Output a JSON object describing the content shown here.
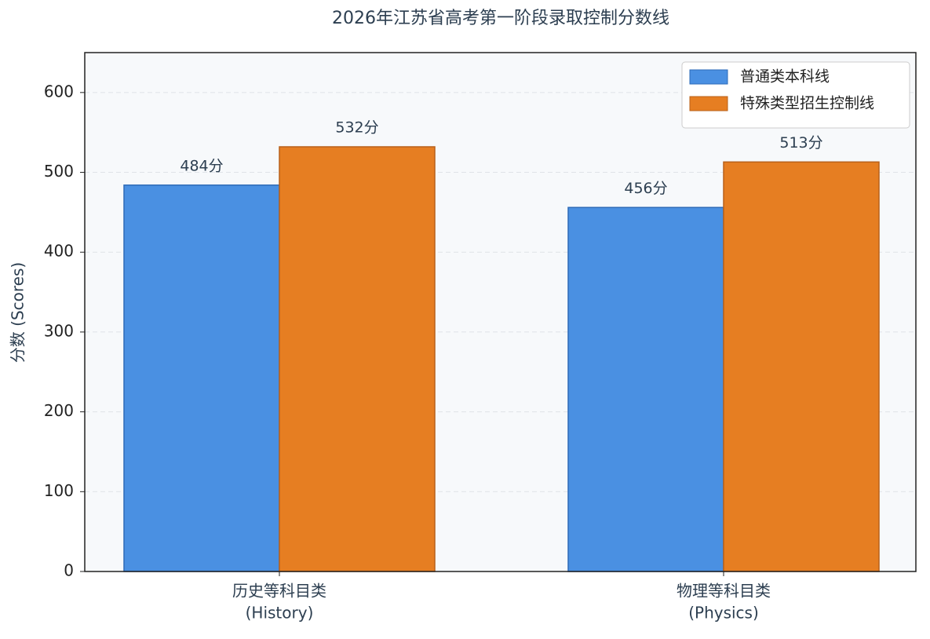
{
  "chart_data": {
    "type": "bar",
    "title": "2026年江苏省高考第一阶段录取控制分数线",
    "y_label": "分数 (Scores)",
    "categories": [
      [
        "历史等科目类",
        "(History)"
      ],
      [
        "物理等科目类",
        "(Physics)"
      ]
    ],
    "series": [
      {
        "name": "普通类本科线",
        "color": "#4a90e2",
        "edge": "#2e6bb8",
        "values": [
          484,
          456
        ],
        "value_labels": [
          "484分",
          "456分"
        ]
      },
      {
        "name": "特殊类型招生控制线",
        "color": "#e67e22",
        "edge": "#b8601a",
        "values": [
          532,
          513
        ],
        "value_labels": [
          "532分",
          "513分"
        ]
      }
    ],
    "ylim": [
      0,
      650
    ],
    "yticks": [
      0,
      100,
      200,
      300,
      400,
      500,
      600
    ],
    "grid": true,
    "legend": "upper-right"
  }
}
